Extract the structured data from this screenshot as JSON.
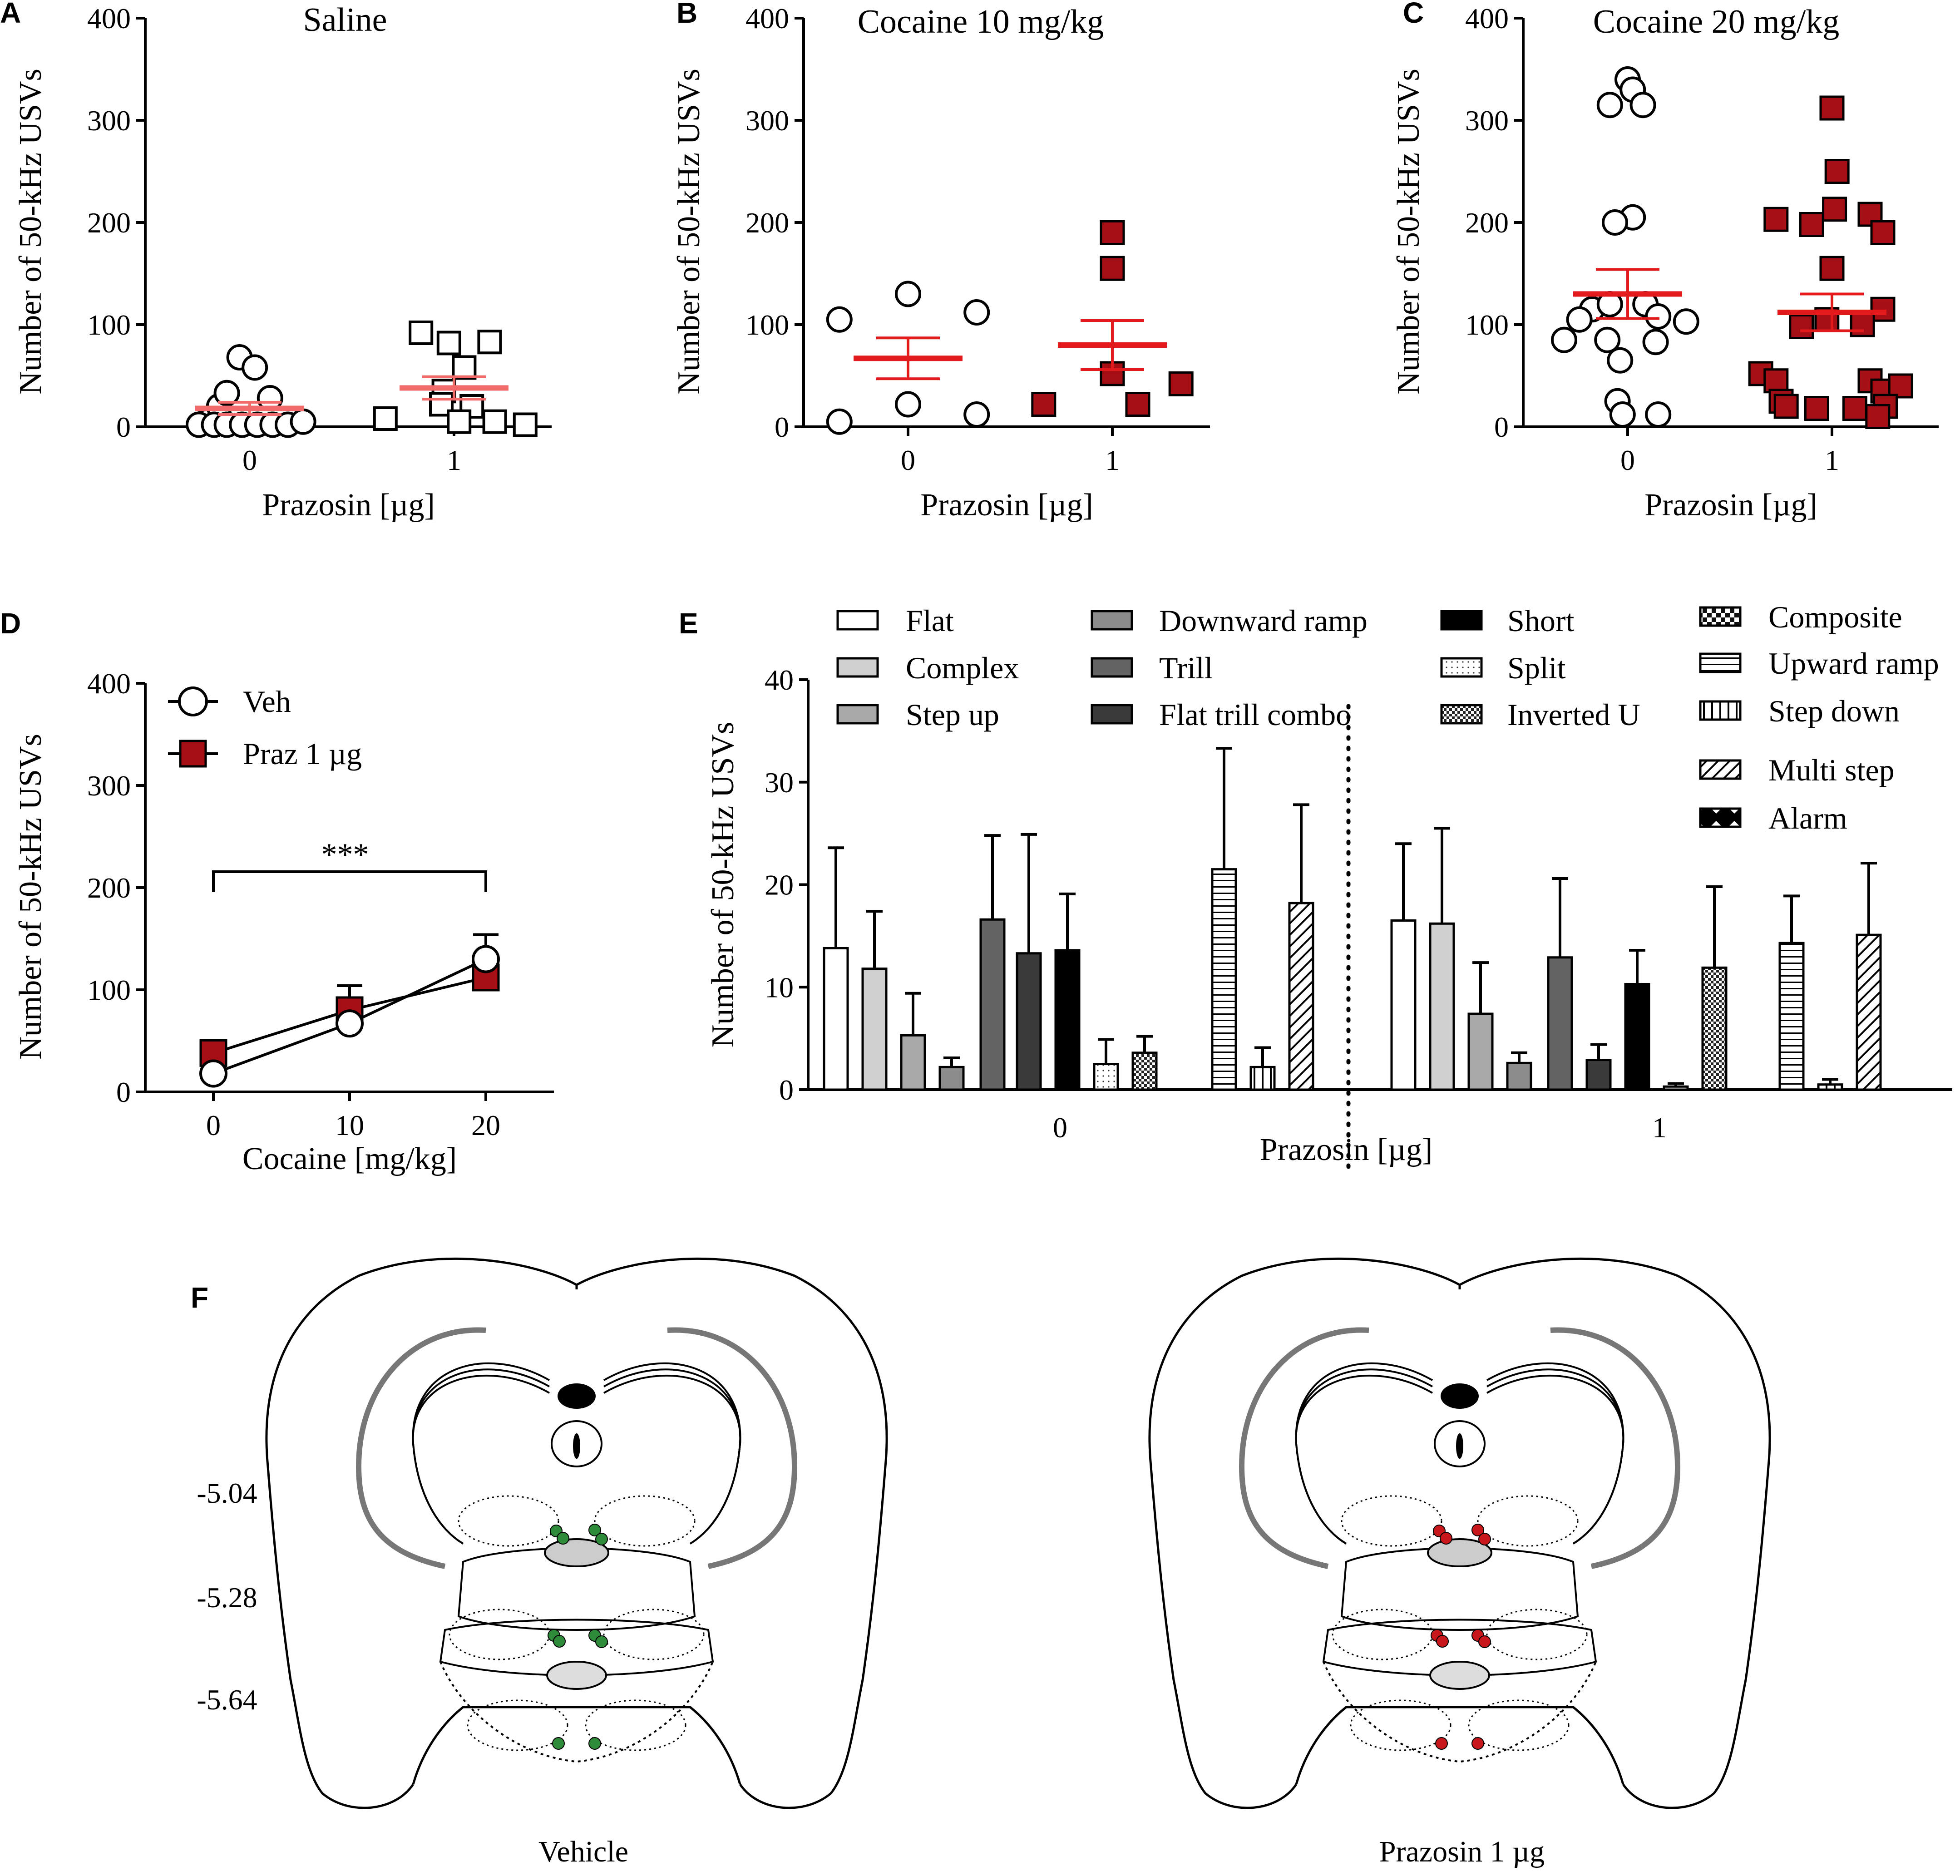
{
  "panels": {
    "A": {
      "letter": "A",
      "title": "Saline",
      "ylabel": "Number of 50-kHz USVs",
      "xlabel": "Prazosin [µg]",
      "yticks": [
        "0",
        "100",
        "200",
        "300",
        "400"
      ],
      "xticks": [
        "0",
        "1"
      ],
      "ylim": [
        0,
        400
      ]
    },
    "B": {
      "letter": "B",
      "title": "Cocaine 10 mg/kg",
      "ylabel": "Number of 50-kHz USVs",
      "xlabel": "Prazosin [µg]",
      "yticks": [
        "0",
        "100",
        "200",
        "300",
        "400"
      ],
      "xticks": [
        "0",
        "1"
      ],
      "ylim": [
        0,
        400
      ]
    },
    "C": {
      "letter": "C",
      "title": "Cocaine 20 mg/kg",
      "ylabel": "Number of 50-kHz USVs",
      "xlabel": "Prazosin [µg]",
      "yticks": [
        "0",
        "100",
        "200",
        "300",
        "400"
      ],
      "xticks": [
        "0",
        "1"
      ],
      "ylim": [
        0,
        400
      ]
    },
    "D": {
      "letter": "D",
      "ylabel": "Number of 50-kHz USVs",
      "xlabel": "Cocaine [mg/kg]",
      "yticks": [
        "0",
        "100",
        "200",
        "300",
        "400"
      ],
      "xticks": [
        "0",
        "10",
        "20"
      ],
      "legend": [
        "Veh",
        "Praz 1 µg"
      ],
      "significance": "***"
    },
    "E": {
      "letter": "E",
      "ylabel": "Number of 50-kHz USVs",
      "xlabel": "Prazosin [µg]",
      "yticks": [
        "0",
        "10",
        "20",
        "30",
        "40"
      ],
      "xticks": [
        "0",
        "1"
      ]
    },
    "F": {
      "letter": "F",
      "levels": [
        "-5.04",
        "-5.28",
        "-5.64"
      ],
      "left_caption": "Vehicle",
      "right_caption": "Prazosin 1 µg"
    }
  },
  "colors": {
    "praz_fill": "#a50f15",
    "mean_line": "#e31a1c",
    "mean_line_light": "#f26b6b",
    "vehicle_site": "#2e8b3a",
    "praz_site": "#c8181c",
    "gray_region": "#777777"
  },
  "chart_data": [
    {
      "id": "A",
      "type": "scatter",
      "title": "Saline",
      "xlabel": "Prazosin [µg]",
      "ylabel": "Number of 50-kHz USVs",
      "ylim": [
        0,
        400
      ],
      "categories": [
        "0",
        "1"
      ],
      "series": [
        {
          "name": "Prazosin 0 µg",
          "marker": "open-circle",
          "points": [
            [
              -0.17,
              5
            ],
            [
              -0.12,
              20
            ],
            [
              -0.09,
              33
            ],
            [
              -0.04,
              68
            ],
            [
              0.02,
              58
            ],
            [
              0.08,
              28
            ],
            [
              -0.2,
              2
            ],
            [
              -0.14,
              2
            ],
            [
              -0.09,
              2
            ],
            [
              -0.03,
              2
            ],
            [
              0.03,
              2
            ],
            [
              0.09,
              2
            ],
            [
              0.15,
              2
            ],
            [
              0.21,
              5
            ]
          ],
          "mean": 18,
          "sem": 6
        },
        {
          "name": "Prazosin 1 µg",
          "marker": "open-square",
          "points": [
            [
              -0.13,
              92
            ],
            [
              -0.02,
              82
            ],
            [
              0.14,
              83
            ],
            [
              0.04,
              58
            ],
            [
              -0.04,
              35
            ],
            [
              -0.05,
              22
            ],
            [
              0.07,
              20
            ],
            [
              -0.27,
              8
            ],
            [
              0.02,
              5
            ],
            [
              0.16,
              5
            ],
            [
              0.28,
              2
            ]
          ],
          "mean": 38,
          "sem": 11
        }
      ]
    },
    {
      "id": "B",
      "type": "scatter",
      "title": "Cocaine 10 mg/kg",
      "xlabel": "Prazosin [µg]",
      "ylabel": "Number of 50-kHz USVs",
      "ylim": [
        0,
        400
      ],
      "categories": [
        "0",
        "1"
      ],
      "series": [
        {
          "name": "Prazosin 0 µg",
          "marker": "open-circle",
          "points": [
            [
              -0.27,
              105
            ],
            [
              0,
              130
            ],
            [
              0.27,
              112
            ],
            [
              -0.27,
              5
            ],
            [
              0,
              22
            ],
            [
              0.27,
              12
            ]
          ],
          "mean": 67,
          "sem": 20
        },
        {
          "name": "Prazosin 1 µg",
          "marker": "filled-square",
          "points": [
            [
              0,
              190
            ],
            [
              0,
              155
            ],
            [
              -0.27,
              22
            ],
            [
              0.1,
              22
            ],
            [
              0.27,
              42
            ],
            [
              0,
              52
            ]
          ],
          "mean": 80,
          "sem": 24
        }
      ]
    },
    {
      "id": "C",
      "type": "scatter",
      "title": "Cocaine 20 mg/kg",
      "xlabel": "Prazosin [µg]",
      "ylabel": "Number of 50-kHz USVs",
      "ylim": [
        0,
        400
      ],
      "categories": [
        "0",
        "1"
      ],
      "series": [
        {
          "name": "Prazosin 0 µg",
          "marker": "open-circle",
          "points": [
            [
              0,
              340
            ],
            [
              0.02,
              330
            ],
            [
              -0.07,
              315
            ],
            [
              0.06,
              315
            ],
            [
              0.02,
              205
            ],
            [
              -0.05,
              200
            ],
            [
              -0.14,
              115
            ],
            [
              -0.07,
              120
            ],
            [
              0.07,
              120
            ],
            [
              -0.25,
              85
            ],
            [
              -0.19,
              105
            ],
            [
              0.12,
              108
            ],
            [
              0.23,
              103
            ],
            [
              0.11,
              83
            ],
            [
              -0.08,
              85
            ],
            [
              -0.03,
              65
            ],
            [
              -0.04,
              25
            ],
            [
              0.12,
              12
            ],
            [
              -0.02,
              12
            ]
          ],
          "mean": 130,
          "sem": 24
        },
        {
          "name": "Prazosin 1 µg",
          "marker": "filled-square",
          "points": [
            [
              0,
              312
            ],
            [
              0.02,
              250
            ],
            [
              0.01,
              213
            ],
            [
              -0.22,
              203
            ],
            [
              -0.08,
              198
            ],
            [
              0.15,
              208
            ],
            [
              0.2,
              190
            ],
            [
              0,
              155
            ],
            [
              0.2,
              115
            ],
            [
              -0.02,
              105
            ],
            [
              0.12,
              100
            ],
            [
              -0.12,
              98
            ],
            [
              -0.28,
              52
            ],
            [
              -0.22,
              45
            ],
            [
              0.15,
              45
            ],
            [
              0.2,
              35
            ],
            [
              0.27,
              40
            ],
            [
              -0.2,
              25
            ],
            [
              -0.18,
              20
            ],
            [
              -0.06,
              18
            ],
            [
              0.09,
              18
            ],
            [
              0.21,
              20
            ],
            [
              0.18,
              10
            ]
          ],
          "mean": 112,
          "sem": 18
        }
      ]
    },
    {
      "id": "D",
      "type": "line",
      "xlabel": "Cocaine [mg/kg]",
      "ylabel": "Number of 50-kHz USVs",
      "ylim": [
        0,
        400
      ],
      "x": [
        0,
        10,
        20
      ],
      "series": [
        {
          "name": "Veh",
          "marker": "open-circle",
          "values": [
            18,
            67,
            130
          ],
          "errors": [
            6,
            20,
            24
          ]
        },
        {
          "name": "Praz 1 µg",
          "marker": "filled-square",
          "values": [
            38,
            80,
            112
          ],
          "errors": [
            11,
            24,
            18
          ]
        }
      ],
      "annotation": {
        "text": "***",
        "from": 0,
        "to": 20
      }
    },
    {
      "id": "E",
      "type": "bar",
      "xlabel": "Prazosin [µg]",
      "ylabel": "Number of 50-kHz USVs",
      "ylim": [
        0,
        40
      ],
      "categories": [
        "0",
        "1"
      ],
      "series": [
        {
          "name": "Flat",
          "pattern": "white",
          "values": [
            13.8,
            16.5
          ],
          "errors": [
            9.8,
            7.5
          ]
        },
        {
          "name": "Complex",
          "pattern": "light",
          "values": [
            11.8,
            16.2
          ],
          "errors": [
            5.6,
            9.3
          ]
        },
        {
          "name": "Step up",
          "pattern": "mid",
          "values": [
            5.3,
            7.4
          ],
          "errors": [
            4.1,
            5.0
          ]
        },
        {
          "name": "Downward ramp",
          "pattern": "midgray",
          "values": [
            2.2,
            2.6
          ],
          "errors": [
            0.9,
            1.0
          ]
        },
        {
          "name": "Trill",
          "pattern": "dark",
          "values": [
            16.6,
            12.9
          ],
          "errors": [
            8.2,
            7.7
          ]
        },
        {
          "name": "Flat trill combo",
          "pattern": "darker",
          "values": [
            13.3,
            2.9
          ],
          "errors": [
            11.6,
            1.5
          ]
        },
        {
          "name": "Short",
          "pattern": "black",
          "values": [
            13.6,
            10.3
          ],
          "errors": [
            5.5,
            3.3
          ]
        },
        {
          "name": "Split",
          "pattern": "dots",
          "values": [
            2.5,
            0.3
          ],
          "errors": [
            2.4,
            0.3
          ]
        },
        {
          "name": "Inverted U",
          "pattern": "checker",
          "values": [
            3.6,
            11.9
          ],
          "errors": [
            1.6,
            7.9
          ]
        },
        {
          "name": "Composite",
          "pattern": "composite",
          "values": [
            0,
            0
          ],
          "errors": [
            0,
            0
          ]
        },
        {
          "name": "Upward ramp",
          "pattern": "hstripe",
          "values": [
            21.5,
            14.3
          ],
          "errors": [
            11.8,
            4.6
          ]
        },
        {
          "name": "Step down",
          "pattern": "vstripe",
          "values": [
            2.2,
            0.5
          ],
          "errors": [
            1.9,
            0.5
          ]
        },
        {
          "name": "Multi step",
          "pattern": "diag",
          "values": [
            18.2,
            15.1
          ],
          "errors": [
            9.6,
            7.0
          ]
        },
        {
          "name": "Alarm",
          "pattern": "alarm",
          "values": [
            0,
            0
          ],
          "errors": [
            0,
            0
          ]
        }
      ]
    }
  ]
}
